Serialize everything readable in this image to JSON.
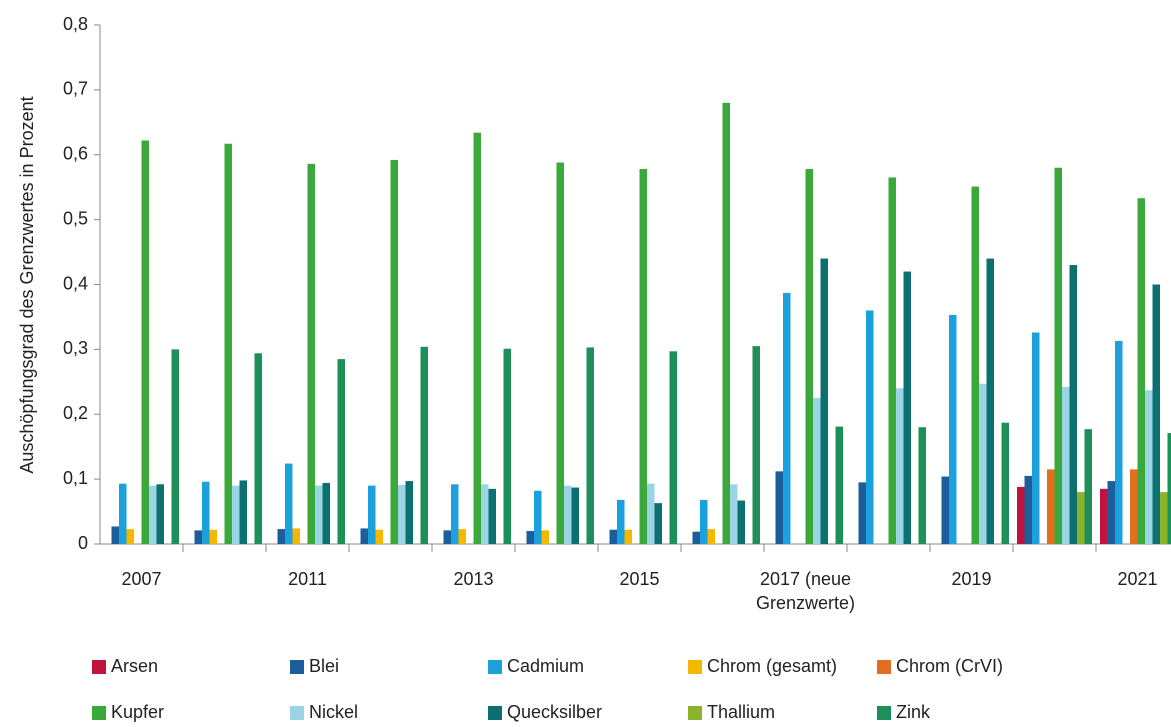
{
  "chart_data": {
    "type": "bar",
    "y_label": "Auschöpfungsgrad des Grenzwertes in Prozent",
    "categories": [
      "2007",
      null,
      "2011",
      null,
      "2013",
      null,
      "2015",
      null,
      "2017 (neue Grenzwerte)",
      null,
      "2019",
      null,
      "2021"
    ],
    "series": [
      {
        "name": "Arsen",
        "color": "#c0143c",
        "values": [
          null,
          null,
          null,
          null,
          null,
          null,
          null,
          null,
          null,
          null,
          null,
          0.088,
          0.085
        ]
      },
      {
        "name": "Blei",
        "color": "#1b5e9b",
        "values": [
          0.027,
          0.021,
          0.023,
          0.024,
          0.021,
          0.02,
          0.022,
          0.019,
          0.112,
          0.095,
          0.104,
          0.105,
          0.097
        ]
      },
      {
        "name": "Cadmium",
        "color": "#1da1dc",
        "values": [
          0.093,
          0.096,
          0.124,
          0.09,
          0.092,
          0.082,
          0.068,
          0.068,
          0.387,
          0.36,
          0.353,
          0.326,
          0.313
        ]
      },
      {
        "name": "Chrom (gesamt)",
        "color": "#f5b800",
        "values": [
          0.023,
          0.022,
          0.024,
          0.022,
          0.023,
          0.021,
          0.022,
          0.023,
          null,
          null,
          null,
          null,
          null
        ]
      },
      {
        "name": "Chrom (CrVI)",
        "color": "#e07020",
        "values": [
          null,
          null,
          null,
          null,
          null,
          null,
          null,
          null,
          null,
          null,
          null,
          0.115,
          0.115
        ]
      },
      {
        "name": "Kupfer",
        "color": "#3aa83a",
        "values": [
          0.622,
          0.617,
          0.586,
          0.592,
          0.634,
          0.588,
          0.578,
          0.68,
          0.578,
          0.565,
          0.551,
          0.58,
          0.533
        ]
      },
      {
        "name": "Nickel",
        "color": "#9bd4e4",
        "values": [
          0.09,
          0.09,
          0.09,
          0.091,
          0.092,
          0.09,
          0.093,
          0.092,
          0.225,
          0.24,
          0.247,
          0.242,
          0.237
        ]
      },
      {
        "name": "Quecksilber",
        "color": "#0d7070",
        "values": [
          0.092,
          0.098,
          0.094,
          0.097,
          0.085,
          0.087,
          0.063,
          0.067,
          0.44,
          0.42,
          0.44,
          0.43,
          0.4
        ]
      },
      {
        "name": "Thallium",
        "color": "#8db32a",
        "values": [
          null,
          null,
          null,
          null,
          null,
          null,
          null,
          null,
          null,
          null,
          null,
          0.08,
          0.08
        ]
      },
      {
        "name": "Zink",
        "color": "#1f8f5a",
        "values": [
          0.3,
          0.294,
          0.285,
          0.304,
          0.301,
          0.303,
          0.297,
          0.305,
          0.181,
          0.18,
          0.187,
          0.177,
          0.171
        ]
      }
    ],
    "ylim": [
      0,
      0.8
    ],
    "yticks": [
      0,
      {
        "value": 0.1,
        "label": "0,1"
      },
      {
        "value": 0.2,
        "label": "0,2"
      },
      {
        "value": 0.3,
        "label": "0,3"
      },
      {
        "value": 0.4,
        "label": "0,4"
      },
      {
        "value": 0.5,
        "label": "0,5"
      },
      {
        "value": 0.6,
        "label": "0,6"
      },
      {
        "value": 0.7,
        "label": "0,7"
      },
      {
        "value": 0.8,
        "label": "0,8"
      }
    ],
    "legend": "bottom"
  }
}
